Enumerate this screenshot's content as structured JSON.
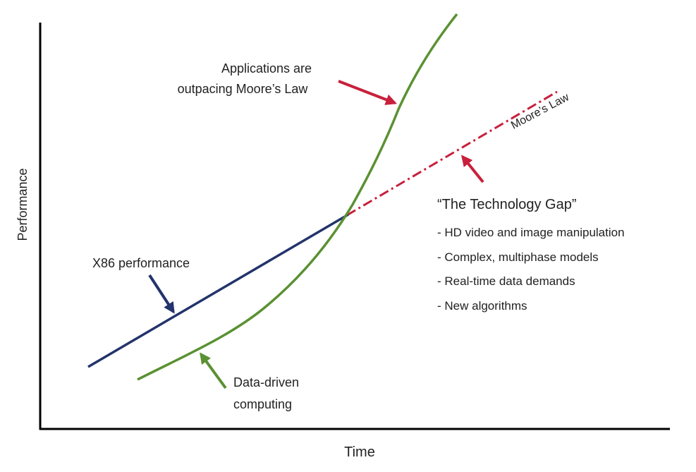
{
  "axes": {
    "y_label": "Performance",
    "x_label": "Time"
  },
  "annotations": {
    "applications": [
      "Applications are",
      "outpacing Moore’s Law"
    ],
    "moores_law": "Moore’s Law",
    "gap_title": "“The Technology Gap”",
    "gap_items": [
      "- HD video and image manipulation",
      "- Complex, multiphase models",
      "- Real-time data demands",
      "- New algorithms"
    ],
    "x86": "X86 performance",
    "data_driven": [
      "Data-driven",
      "computing"
    ]
  }
}
